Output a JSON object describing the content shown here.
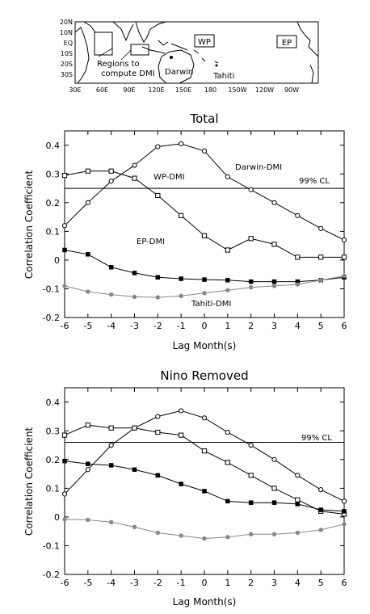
{
  "map": {
    "lat_labels": [
      "20N",
      "10N",
      "EQ",
      "10S",
      "20S",
      "30S"
    ],
    "lon_labels": [
      "30E",
      "60E",
      "90E",
      "120E",
      "150E",
      "180",
      "150W",
      "120W",
      "90W"
    ],
    "box_labels": {
      "wp": "WP",
      "ep": "EP"
    },
    "annotation_line1": "Regions to",
    "annotation_line2": "compute DMI",
    "station_darwin": "Darwin",
    "station_tahiti": "Tahiti"
  },
  "chart_data": [
    {
      "type": "line",
      "title": "Total",
      "xlabel": "Lag Month(s)",
      "ylabel": "Correlation Coefficient",
      "x": [
        -6,
        -5,
        -4,
        -3,
        -2,
        -1,
        0,
        1,
        2,
        3,
        4,
        5,
        6
      ],
      "xlim": [
        -6,
        6
      ],
      "ylim": [
        -0.2,
        0.45
      ],
      "yticks": [
        -0.2,
        -0.1,
        0,
        0.1,
        0.2,
        0.3,
        0.4
      ],
      "ytick_labels": [
        "-0.2",
        "-0.1",
        "0",
        "0.1",
        "0.2",
        "0.3",
        "0.4"
      ],
      "threshold": {
        "value": 0.25,
        "label": "99% CL"
      },
      "series": [
        {
          "name": "Darwin-DMI",
          "marker": "open-circle",
          "color": "#000000",
          "values": [
            0.12,
            0.2,
            0.275,
            0.33,
            0.395,
            0.405,
            0.38,
            0.29,
            0.245,
            0.2,
            0.155,
            0.11,
            0.07
          ]
        },
        {
          "name": "WP-DMI",
          "marker": "open-square",
          "color": "#000000",
          "values": [
            0.295,
            0.31,
            0.31,
            0.285,
            0.225,
            0.155,
            0.085,
            0.035,
            0.075,
            0.055,
            0.01,
            0.01,
            0.01
          ]
        },
        {
          "name": "EP-DMI",
          "marker": "filled-square",
          "color": "#000000",
          "values": [
            0.035,
            0.02,
            -0.025,
            -0.045,
            -0.06,
            -0.065,
            -0.068,
            -0.07,
            -0.075,
            -0.075,
            -0.075,
            -0.07,
            -0.06
          ]
        },
        {
          "name": "Tahiti-DMI",
          "marker": "filled-circle",
          "color": "#888888",
          "values": [
            -0.09,
            -0.11,
            -0.12,
            -0.128,
            -0.13,
            -0.125,
            -0.115,
            -0.105,
            -0.095,
            -0.09,
            -0.085,
            -0.07,
            -0.055
          ]
        }
      ]
    },
    {
      "type": "line",
      "title": "Nino Removed",
      "xlabel": "Lag Month(s)",
      "ylabel": "Correlation Coefficient",
      "x": [
        -6,
        -5,
        -4,
        -3,
        -2,
        -1,
        0,
        1,
        2,
        3,
        4,
        5,
        6
      ],
      "xlim": [
        -6,
        6
      ],
      "ylim": [
        -0.2,
        0.45
      ],
      "yticks": [
        -0.2,
        -0.1,
        0,
        0.1,
        0.2,
        0.3,
        0.4
      ],
      "ytick_labels": [
        "-0.2",
        "-0.1",
        "0",
        "0.1",
        "0.2",
        "0.3",
        "0.4"
      ],
      "threshold": {
        "value": 0.26,
        "label": "99% CL"
      },
      "series": [
        {
          "name": "",
          "marker": "open-circle",
          "color": "#000000",
          "values": [
            0.08,
            0.165,
            0.25,
            0.31,
            0.35,
            0.37,
            0.345,
            0.295,
            0.25,
            0.2,
            0.145,
            0.095,
            0.055
          ]
        },
        {
          "name": "",
          "marker": "open-square",
          "color": "#000000",
          "values": [
            0.285,
            0.32,
            0.31,
            0.31,
            0.295,
            0.285,
            0.23,
            0.19,
            0.145,
            0.1,
            0.06,
            0.02,
            0.01
          ]
        },
        {
          "name": "",
          "marker": "filled-square",
          "color": "#000000",
          "values": [
            0.195,
            0.185,
            0.18,
            0.165,
            0.145,
            0.115,
            0.09,
            0.055,
            0.05,
            0.05,
            0.045,
            0.025,
            0.02
          ]
        },
        {
          "name": "",
          "marker": "filled-circle",
          "color": "#888888",
          "values": [
            -0.008,
            -0.01,
            -0.018,
            -0.035,
            -0.055,
            -0.065,
            -0.075,
            -0.07,
            -0.06,
            -0.06,
            -0.055,
            -0.045,
            -0.025
          ]
        }
      ]
    }
  ]
}
